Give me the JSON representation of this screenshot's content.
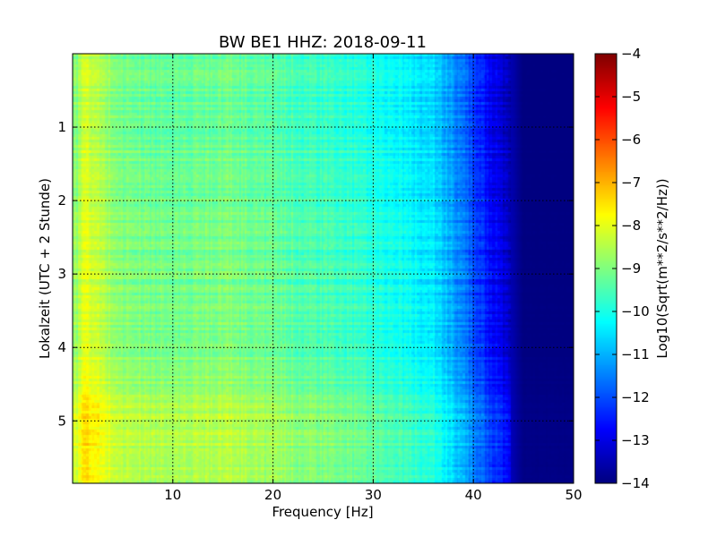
{
  "chart_data": {
    "type": "heatmap",
    "title": "BW BE1 HHZ: 2018-09-11",
    "xlabel": "Frequency [Hz]",
    "ylabel": "Lokalzeit (UTC + 2 Stunde)",
    "xlim": [
      0,
      50
    ],
    "ylim": [
      5.85,
      0
    ],
    "x_ticks": [
      10,
      20,
      30,
      40,
      50
    ],
    "y_ticks": [
      1,
      2,
      3,
      4,
      5
    ],
    "grid": true,
    "colormap": "jet",
    "colorbar": {
      "label": "Log10(Sqrt(m**2/s**2/Hz))",
      "range": [
        -14,
        -4
      ],
      "ticks": [
        -4,
        -5,
        -6,
        -7,
        -8,
        -9,
        -10,
        -11,
        -12,
        -13,
        -14
      ]
    },
    "frequency_profile": [
      {
        "frequency": 0.5,
        "level": -8.8
      },
      {
        "frequency": 1.0,
        "level": -8.0
      },
      {
        "frequency": 2.0,
        "level": -8.3
      },
      {
        "frequency": 5.0,
        "level": -9.0
      },
      {
        "frequency": 10.0,
        "level": -9.2
      },
      {
        "frequency": 15.0,
        "level": -9.0
      },
      {
        "frequency": 20.0,
        "level": -9.3
      },
      {
        "frequency": 25.0,
        "level": -9.6
      },
      {
        "frequency": 30.0,
        "level": -9.9
      },
      {
        "frequency": 33.0,
        "level": -10.2
      },
      {
        "frequency": 36.0,
        "level": -10.5
      },
      {
        "frequency": 38.0,
        "level": -11.2
      },
      {
        "frequency": 40.0,
        "level": -12.0
      },
      {
        "frequency": 42.0,
        "level": -12.8
      },
      {
        "frequency": 44.0,
        "level": -13.6
      },
      {
        "frequency": 45.0,
        "level": -14.0
      },
      {
        "frequency": 50.0,
        "level": -14.0
      }
    ],
    "time_trend": [
      {
        "hour": 0.0,
        "offset": -0.2
      },
      {
        "hour": 1.0,
        "offset": -0.1
      },
      {
        "hour": 2.0,
        "offset": 0.0
      },
      {
        "hour": 3.0,
        "offset": 0.0
      },
      {
        "hour": 4.0,
        "offset": 0.1
      },
      {
        "hour": 4.7,
        "offset": 0.4
      },
      {
        "hour": 5.0,
        "offset": 0.7
      },
      {
        "hour": 5.85,
        "offset": 0.6
      }
    ]
  }
}
